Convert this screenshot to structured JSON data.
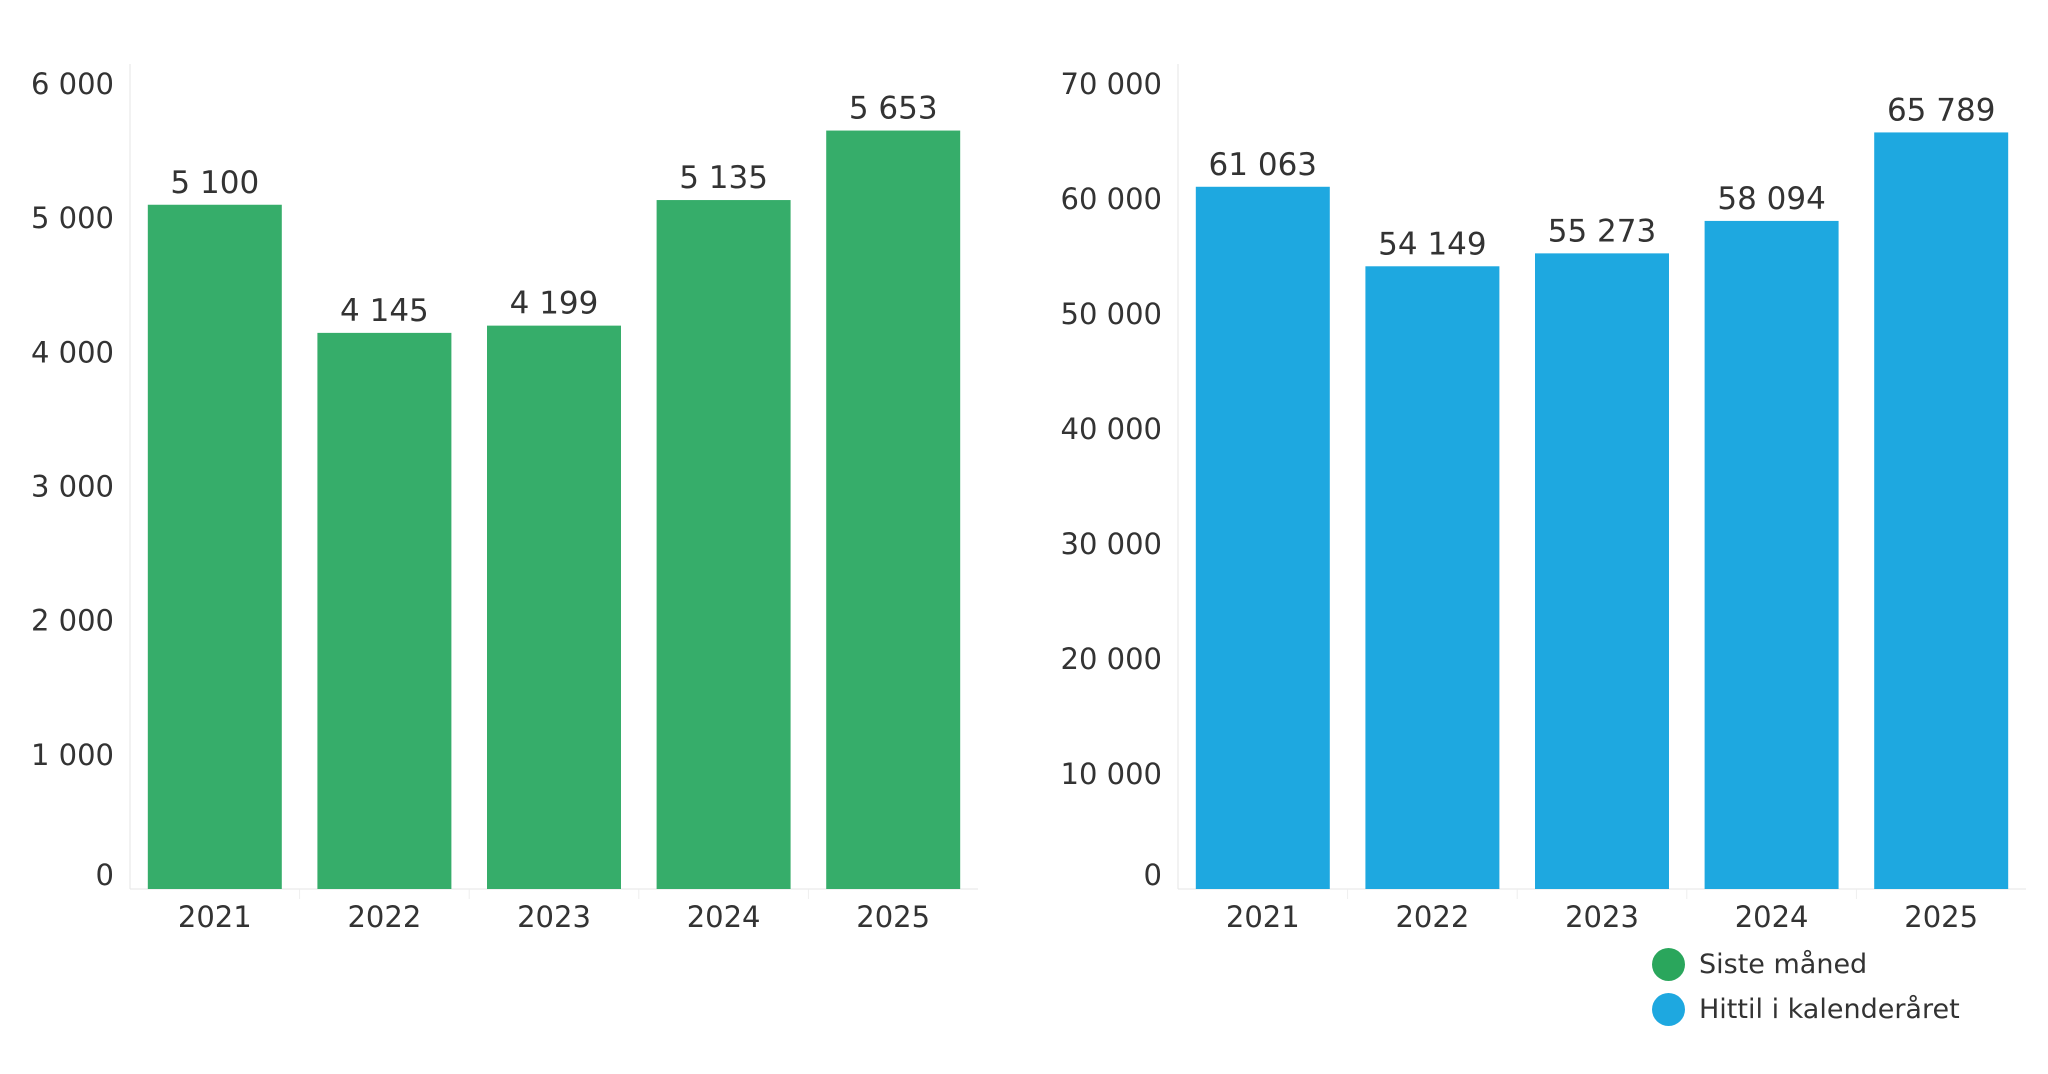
{
  "chart_data": [
    {
      "type": "bar",
      "categories": [
        "2021",
        "2022",
        "2023",
        "2024",
        "2025"
      ],
      "series": [
        {
          "name": "Siste måned",
          "values": [
            5100,
            4145,
            4199,
            5135,
            5653
          ]
        }
      ],
      "value_labels": [
        "5 100",
        "4 145",
        "4 199",
        "5 135",
        "5 653"
      ],
      "y_ticks": [
        0,
        1000,
        2000,
        3000,
        4000,
        5000,
        6000
      ],
      "y_tick_labels": [
        "0",
        "1 000",
        "2 000",
        "3 000",
        "4 000",
        "5 000",
        "6 000"
      ],
      "ylim": [
        0,
        6000
      ],
      "color": "#36ad6a"
    },
    {
      "type": "bar",
      "categories": [
        "2021",
        "2022",
        "2023",
        "2024",
        "2025"
      ],
      "series": [
        {
          "name": "Hittil i kalenderåret",
          "values": [
            61063,
            54149,
            55273,
            58094,
            65789
          ]
        }
      ],
      "value_labels": [
        "61 063",
        "54 149",
        "55 273",
        "58 094",
        "65 789"
      ],
      "y_ticks": [
        0,
        10000,
        20000,
        30000,
        40000,
        50000,
        60000,
        70000
      ],
      "y_tick_labels": [
        "0",
        "10 000",
        "20 000",
        "30 000",
        "40 000",
        "50 000",
        "60 000",
        "70 000"
      ],
      "ylim": [
        0,
        70000
      ],
      "color": "#1ea8e0"
    }
  ],
  "legend": {
    "placement": "bottom-right",
    "items": [
      {
        "label": "Siste måned",
        "color": "#2aa65c"
      },
      {
        "label": "Hittil i kalenderåret",
        "color": "#1ea8e0"
      }
    ]
  }
}
